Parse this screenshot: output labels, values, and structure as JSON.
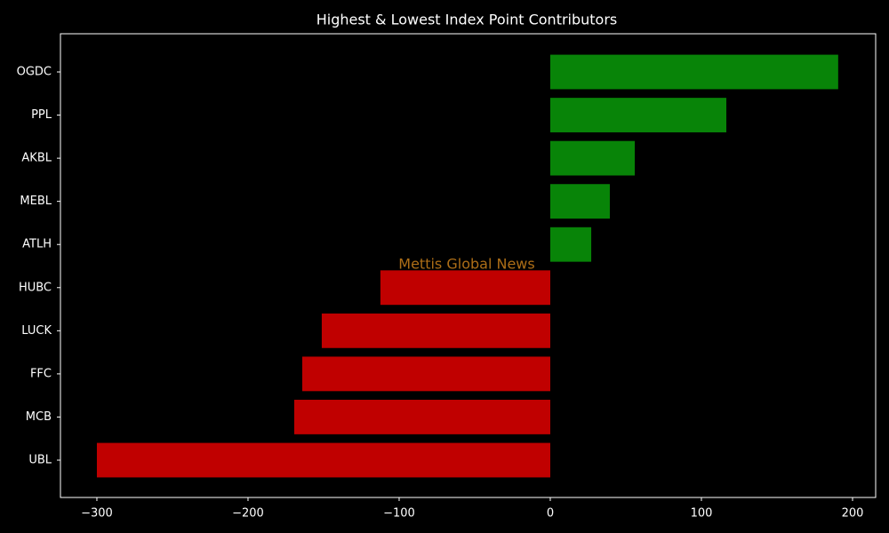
{
  "chart_data": {
    "type": "barh",
    "title": "Highest & Lowest Index Point Contributors",
    "watermark": "Mettis Global News",
    "categories": [
      "OGDC",
      "PPL",
      "AKBL",
      "MEBL",
      "ATLH",
      "HUBC",
      "LUCK",
      "FFC",
      "MCB",
      "UBL"
    ],
    "values": [
      190.5,
      116.5,
      55.9,
      39.4,
      27.1,
      -112.4,
      -151.2,
      -164.1,
      -169.4,
      -300
    ],
    "colors": [
      "#088408",
      "#088408",
      "#088408",
      "#088408",
      "#088408",
      "#c00000",
      "#c00000",
      "#c00000",
      "#c00000",
      "#c00000"
    ],
    "xlim": [
      -324.1,
      215.3
    ],
    "xticks": [
      {
        "value": -300,
        "label": "−300"
      },
      {
        "value": -200,
        "label": "−200"
      },
      {
        "value": -100,
        "label": "−100"
      },
      0,
      100,
      200
    ],
    "grid": false
  }
}
